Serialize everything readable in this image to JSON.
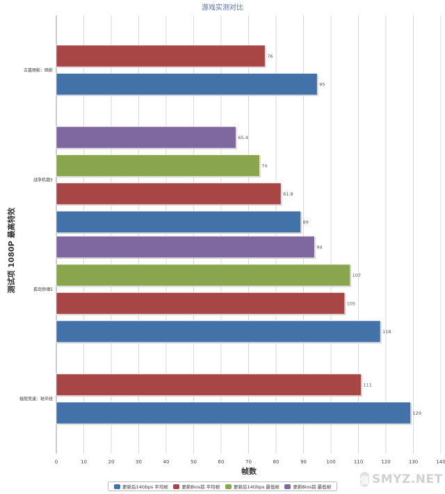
{
  "chart_data": {
    "type": "bar",
    "orientation": "horizontal",
    "title": "游戏实测对比",
    "ylabel": "测试项 1080P 最高特效",
    "xlabel": "帧数",
    "xlim": [
      0,
      140
    ],
    "xticks": [
      0,
      10,
      20,
      30,
      40,
      50,
      60,
      70,
      80,
      90,
      100,
      110,
      120,
      130,
      140
    ],
    "grid": true,
    "legend_position": "bottom",
    "categories": [
      "古墓丽影：暗影",
      "战争机器5",
      "孤岛惊魂5",
      "极限竞速：地平线"
    ],
    "series": [
      {
        "name": "更新后14Gbps 平均帧",
        "color": "#4272a8",
        "values": [
          95,
          89,
          118,
          129
        ]
      },
      {
        "name": "更新Bios前 平均帧",
        "color": "#a84545",
        "values": [
          76,
          81.8,
          105,
          111
        ]
      },
      {
        "name": "更新后14Gbps 最低帧",
        "color": "#89a54e",
        "values": [
          null,
          74,
          107,
          null
        ]
      },
      {
        "name": "更新Bios前 最低帧",
        "color": "#7f68a0",
        "values": [
          null,
          65.4,
          94,
          null
        ]
      }
    ],
    "value_labels": [
      [
        "95",
        "89",
        "118",
        "129"
      ],
      [
        "76",
        "81.8",
        "105",
        "111"
      ],
      [
        "",
        "74",
        "107",
        ""
      ],
      [
        "",
        "65.4",
        "94",
        ""
      ]
    ]
  },
  "watermark": {
    "text": "SMYZ.NET",
    "logo_glyph": "值"
  }
}
